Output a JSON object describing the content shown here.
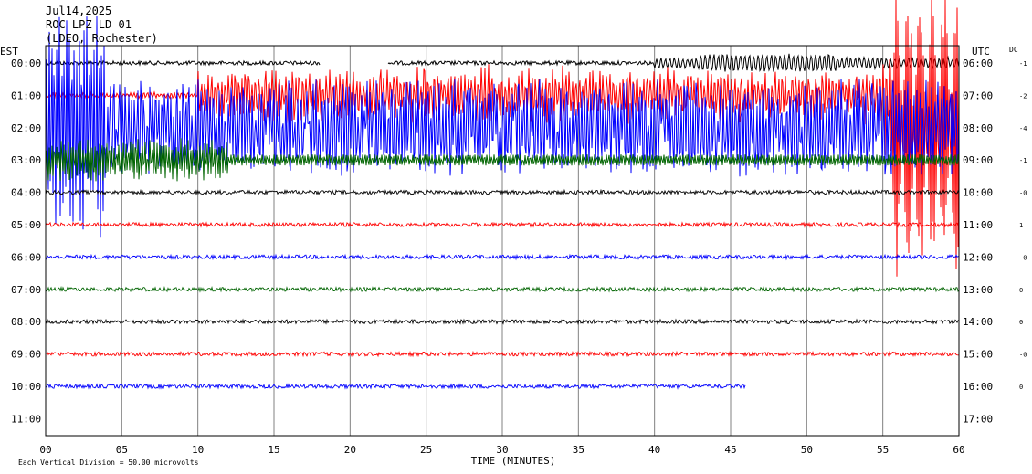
{
  "header": {
    "line1": "Jul14,2025",
    "line2": "ROC LPZ LD 01",
    "line3": "(LDEO, Rochester)"
  },
  "left_axis_label": "EST",
  "right_axis_label": "UTC",
  "dc_label": "DC",
  "footer": {
    "scale_note": "Each Vertical Division =   50.00 microvolts"
  },
  "colors": {
    "black": "#000000",
    "red": "#ff0000",
    "blue": "#0000ff",
    "green": "#006400",
    "grid": "#808080"
  },
  "chart_data": {
    "type": "line",
    "title": "Jul14,2025 ROC LPZ LD 01 (LDEO, Rochester)",
    "xlabel": "TIME (MINUTES)",
    "xlim": [
      0,
      60
    ],
    "x_ticks": [
      "00",
      "05",
      "10",
      "15",
      "20",
      "25",
      "30",
      "35",
      "40",
      "45",
      "50",
      "55",
      "60"
    ],
    "est_labels": [
      "00:00",
      "01:00",
      "02:00",
      "03:00",
      "04:00",
      "05:00",
      "06:00",
      "07:00",
      "08:00",
      "09:00",
      "10:00",
      "11:00"
    ],
    "utc_labels": [
      "06:00",
      "07:00",
      "08:00",
      "09:00",
      "10:00",
      "11:00",
      "12:00",
      "13:00",
      "14:00",
      "15:00",
      "16:00",
      "17:00"
    ],
    "dc_offsets": [
      "-1",
      "-2",
      "-4",
      "-1",
      "-0",
      "1",
      "-0",
      "0",
      "0",
      "-0",
      "0",
      ""
    ],
    "trace_color_cycle": [
      "black",
      "red",
      "blue",
      "green"
    ],
    "vertical_division_microvolts": 50.0,
    "traces": [
      {
        "hour_est": "00:00",
        "color": "black",
        "segments": [
          [
            0,
            18
          ],
          [
            22.5,
            60
          ]
        ],
        "amplitude": "high after 45 min"
      },
      {
        "hour_est": "01:00",
        "color": "red",
        "segments": [
          [
            0,
            60
          ]
        ],
        "amplitude": "very high"
      },
      {
        "hour_est": "02:00",
        "color": "blue",
        "segments": [
          [
            0,
            60
          ]
        ],
        "amplitude": "very high"
      },
      {
        "hour_est": "03:00",
        "color": "green",
        "segments": [
          [
            0,
            60
          ]
        ],
        "amplitude": "moderate"
      },
      {
        "hour_est": "04:00",
        "color": "black",
        "segments": [
          [
            0,
            60
          ]
        ],
        "amplitude": "low"
      },
      {
        "hour_est": "05:00",
        "color": "red",
        "segments": [
          [
            0,
            60
          ]
        ],
        "amplitude": "low"
      },
      {
        "hour_est": "06:00",
        "color": "blue",
        "segments": [
          [
            0,
            60
          ]
        ],
        "amplitude": "low"
      },
      {
        "hour_est": "07:00",
        "color": "green",
        "segments": [
          [
            0,
            60
          ]
        ],
        "amplitude": "low"
      },
      {
        "hour_est": "08:00",
        "color": "black",
        "segments": [
          [
            0,
            60
          ]
        ],
        "amplitude": "low"
      },
      {
        "hour_est": "09:00",
        "color": "red",
        "segments": [
          [
            0,
            60
          ]
        ],
        "amplitude": "low"
      },
      {
        "hour_est": "10:00",
        "color": "blue",
        "segments": [
          [
            0,
            46
          ]
        ],
        "amplitude": "low"
      }
    ]
  }
}
